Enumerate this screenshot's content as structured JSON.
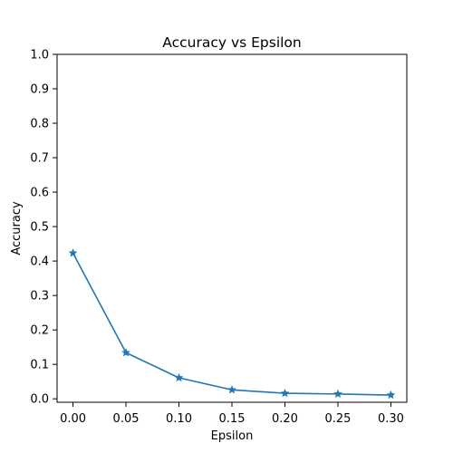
{
  "chart_data": {
    "type": "line",
    "title": "Accuracy vs Epsilon",
    "xlabel": "Epsilon",
    "ylabel": "Accuracy",
    "x": [
      0.0,
      0.05,
      0.1,
      0.15,
      0.2,
      0.25,
      0.3
    ],
    "series": [
      {
        "values": [
          0.423,
          0.134,
          0.061,
          0.026,
          0.016,
          0.014,
          0.011
        ],
        "marker": "star",
        "color": "#1f77b4"
      }
    ],
    "xlim": [
      -0.015,
      0.315
    ],
    "ylim": [
      0.0,
      1.0
    ],
    "x_ticks": [
      0.0,
      0.05,
      0.1,
      0.15,
      0.2,
      0.25,
      0.3
    ],
    "x_tick_labels": [
      "0.00",
      "0.05",
      "0.10",
      "0.15",
      "0.20",
      "0.25",
      "0.30"
    ],
    "y_ticks": [
      0.0,
      0.1,
      0.2,
      0.3,
      0.4,
      0.5,
      0.6,
      0.7,
      0.8,
      0.9,
      1.0
    ],
    "y_tick_labels": [
      "0.0",
      "0.1",
      "0.2",
      "0.3",
      "0.4",
      "0.5",
      "0.6",
      "0.7",
      "0.8",
      "0.9",
      "1.0"
    ],
    "grid": false,
    "legend": "none"
  }
}
